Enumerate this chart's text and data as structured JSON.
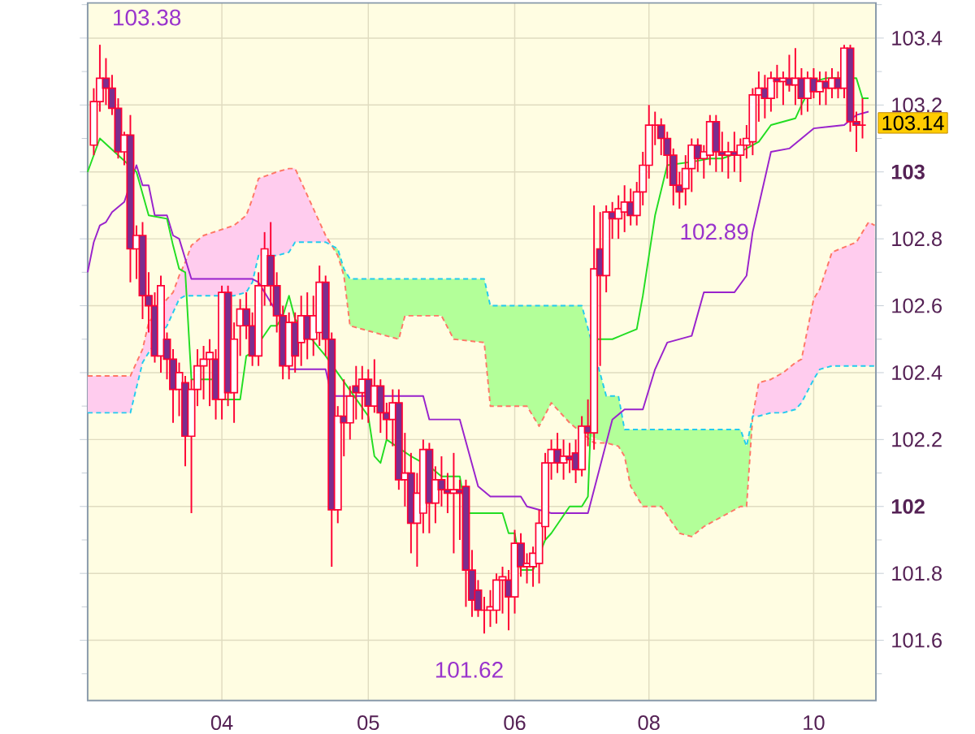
{
  "chart_data": {
    "type": "candlestick",
    "categories": [
      null,
      null,
      null,
      null,
      null,
      null,
      null,
      null,
      null,
      null,
      null,
      null,
      null,
      null,
      null,
      null,
      null,
      null,
      null,
      null,
      null,
      null,
      "04",
      null,
      null,
      null,
      null,
      null,
      null,
      null,
      null,
      null,
      null,
      null,
      null,
      null,
      null,
      null,
      null,
      null,
      null,
      null,
      null,
      null,
      null,
      null,
      "05",
      null,
      null,
      null,
      null,
      null,
      null,
      null,
      null,
      null,
      null,
      null,
      null,
      null,
      null,
      null,
      null,
      null,
      null,
      null,
      null,
      null,
      null,
      null,
      "06",
      null,
      null,
      null,
      null,
      null,
      null,
      null,
      null,
      null,
      null,
      null,
      null,
      null,
      null,
      null,
      null,
      null,
      null,
      null,
      null,
      null,
      "08",
      null,
      null,
      null,
      null,
      null,
      null,
      null,
      null,
      null,
      null,
      null,
      null,
      null,
      null,
      null,
      null,
      null,
      null,
      null,
      null,
      null,
      null,
      null,
      null,
      null,
      null,
      "10",
      null,
      null,
      null,
      null,
      null,
      null,
      null,
      null,
      null,
      null
    ],
    "ohlc": [
      null,
      [
        103.08,
        103.25,
        103.05,
        103.21
      ],
      [
        103.21,
        103.38,
        103.18,
        103.28
      ],
      [
        103.28,
        103.34,
        103.2,
        103.25
      ],
      [
        103.25,
        103.29,
        103.17,
        103.19
      ],
      [
        103.19,
        103.22,
        103.04,
        103.06
      ],
      [
        103.06,
        103.12,
        103.02,
        103.11
      ],
      [
        103.11,
        103.17,
        102.67,
        102.77
      ],
      [
        102.77,
        102.84,
        102.68,
        102.81
      ],
      [
        102.81,
        102.85,
        102.56,
        102.63
      ],
      [
        102.63,
        102.7,
        102.52,
        102.6
      ],
      [
        102.6,
        102.64,
        102.43,
        102.45
      ],
      [
        102.45,
        102.69,
        102.4,
        102.66
      ],
      [
        102.5,
        102.52,
        102.38,
        102.44
      ],
      [
        102.44,
        102.47,
        102.25,
        102.35
      ],
      [
        102.35,
        102.43,
        102.27,
        102.4
      ],
      [
        102.37,
        102.39,
        102.12,
        102.21
      ],
      [
        102.21,
        102.38,
        101.98,
        102.35
      ],
      [
        102.35,
        102.47,
        102.3,
        102.42
      ],
      [
        102.42,
        102.48,
        102.32,
        102.44
      ],
      [
        102.44,
        102.5,
        102.3,
        102.46
      ],
      [
        102.44,
        102.47,
        102.26,
        102.32
      ],
      [
        102.32,
        102.66,
        102.26,
        102.64
      ],
      [
        102.64,
        102.66,
        102.3,
        102.34
      ],
      [
        102.34,
        102.55,
        102.25,
        102.5
      ],
      [
        102.54,
        102.62,
        102.45,
        102.59
      ],
      [
        102.59,
        102.64,
        102.5,
        102.54
      ],
      [
        102.54,
        102.58,
        102.42,
        102.45
      ],
      [
        102.45,
        102.7,
        102.42,
        102.66
      ],
      [
        102.66,
        102.82,
        102.6,
        102.77
      ],
      [
        102.75,
        102.85,
        102.6,
        102.66
      ],
      [
        102.66,
        102.7,
        102.52,
        102.57
      ],
      [
        102.57,
        102.6,
        102.38,
        102.42
      ],
      [
        102.42,
        102.58,
        102.38,
        102.55
      ],
      [
        102.55,
        102.58,
        102.4,
        102.45
      ],
      [
        102.49,
        102.63,
        102.42,
        102.57
      ],
      [
        102.57,
        102.64,
        102.44,
        102.5
      ],
      [
        102.5,
        102.63,
        102.45,
        102.57
      ],
      [
        102.52,
        102.72,
        102.48,
        102.67
      ],
      [
        102.67,
        102.69,
        102.45,
        102.5
      ],
      [
        102.5,
        102.52,
        101.82,
        101.99
      ],
      [
        101.99,
        102.3,
        101.95,
        102.27
      ],
      [
        102.27,
        102.38,
        102.15,
        102.25
      ],
      [
        102.25,
        102.36,
        102.2,
        102.33
      ],
      [
        102.36,
        102.42,
        102.26,
        102.34
      ],
      [
        102.34,
        102.42,
        102.26,
        102.38
      ],
      [
        102.38,
        102.41,
        102.25,
        102.3
      ],
      [
        102.3,
        102.44,
        102.28,
        102.36
      ],
      [
        102.36,
        102.38,
        102.22,
        102.28
      ],
      [
        102.28,
        102.31,
        102.2,
        102.26
      ],
      [
        102.26,
        102.35,
        102.18,
        102.31
      ],
      [
        102.31,
        102.35,
        102.05,
        102.08
      ],
      [
        102.08,
        102.22,
        102.0,
        102.1
      ],
      [
        102.1,
        102.16,
        101.86,
        101.95
      ],
      [
        101.95,
        102.1,
        101.82,
        102.04
      ],
      [
        101.98,
        102.2,
        101.92,
        102.17
      ],
      [
        102.17,
        102.19,
        101.92,
        102.01
      ],
      [
        102.01,
        102.12,
        101.95,
        102.08
      ],
      [
        102.08,
        102.15,
        102.0,
        102.05
      ],
      [
        102.05,
        102.1,
        101.98,
        102.04
      ],
      [
        102.04,
        102.16,
        101.86,
        102.05
      ],
      [
        102.05,
        102.08,
        101.9,
        102.04
      ],
      [
        102.06,
        102.08,
        101.7,
        101.81
      ],
      [
        101.81,
        101.87,
        101.67,
        101.72
      ],
      [
        101.75,
        101.78,
        101.67,
        101.69
      ],
      [
        101.69,
        101.73,
        101.62,
        101.69
      ],
      [
        101.69,
        101.75,
        101.64,
        101.7
      ],
      [
        101.69,
        101.8,
        101.65,
        101.78
      ],
      [
        101.78,
        101.82,
        101.68,
        101.79
      ],
      [
        101.78,
        101.81,
        101.63,
        101.73
      ],
      [
        101.73,
        101.93,
        101.68,
        101.89
      ],
      [
        101.89,
        101.92,
        101.79,
        101.82
      ],
      [
        101.82,
        101.86,
        101.77,
        101.83
      ],
      [
        101.82,
        101.88,
        101.76,
        101.86
      ],
      [
        101.83,
        101.99,
        101.77,
        101.95
      ],
      [
        101.94,
        102.16,
        101.9,
        102.13
      ],
      [
        102.13,
        102.2,
        102.08,
        102.17
      ],
      [
        102.17,
        102.22,
        102.1,
        102.13
      ],
      [
        102.13,
        102.2,
        102.08,
        102.15
      ],
      [
        102.15,
        102.19,
        102.1,
        102.14
      ],
      [
        102.16,
        102.2,
        102.07,
        102.11
      ],
      [
        102.11,
        102.27,
        102.09,
        102.24
      ],
      [
        102.24,
        102.32,
        102.18,
        102.22
      ],
      [
        102.22,
        102.9,
        102.17,
        102.71
      ],
      [
        102.77,
        102.88,
        102.42,
        102.69
      ],
      [
        102.69,
        102.9,
        102.64,
        102.88
      ],
      [
        102.88,
        102.91,
        102.8,
        102.86
      ],
      [
        102.86,
        102.93,
        102.8,
        102.89
      ],
      [
        102.88,
        102.96,
        102.82,
        102.91
      ],
      [
        102.91,
        102.95,
        102.84,
        102.87
      ],
      [
        102.87,
        102.97,
        102.84,
        102.94
      ],
      [
        102.94,
        103.06,
        102.9,
        103.02
      ],
      [
        103.02,
        103.2,
        102.98,
        103.14
      ],
      [
        103.14,
        103.18,
        103.08,
        103.14
      ],
      [
        103.14,
        103.16,
        103.05,
        103.1
      ],
      [
        103.1,
        103.12,
        102.98,
        103.05
      ],
      [
        103.05,
        103.07,
        102.9,
        102.96
      ],
      [
        102.96,
        103.0,
        102.89,
        102.94
      ],
      [
        102.95,
        103.05,
        102.9,
        103.01
      ],
      [
        103.01,
        103.1,
        102.94,
        103.08
      ],
      [
        103.08,
        103.1,
        103.0,
        103.04
      ],
      [
        103.04,
        103.08,
        102.98,
        103.06
      ],
      [
        103.05,
        103.17,
        103.02,
        103.15
      ],
      [
        103.15,
        103.17,
        103.0,
        103.06
      ],
      [
        103.06,
        103.12,
        103.0,
        103.05
      ],
      [
        103.05,
        103.09,
        102.98,
        103.06
      ],
      [
        103.06,
        103.12,
        103.0,
        103.05
      ],
      [
        103.05,
        103.1,
        102.97,
        103.08
      ],
      [
        103.08,
        103.14,
        103.04,
        103.1
      ],
      [
        103.09,
        103.25,
        103.05,
        103.23
      ],
      [
        103.23,
        103.3,
        103.15,
        103.25
      ],
      [
        103.25,
        103.29,
        103.16,
        103.22
      ],
      [
        103.22,
        103.3,
        103.18,
        103.28
      ],
      [
        103.28,
        103.32,
        103.22,
        103.27
      ],
      [
        103.27,
        103.3,
        103.2,
        103.28
      ],
      [
        103.28,
        103.35,
        103.24,
        103.26
      ],
      [
        103.26,
        103.37,
        103.2,
        103.28
      ],
      [
        103.28,
        103.31,
        103.17,
        103.22
      ],
      [
        103.22,
        103.3,
        103.18,
        103.28
      ],
      [
        103.28,
        103.31,
        103.22,
        103.24
      ],
      [
        103.24,
        103.3,
        103.2,
        103.27
      ],
      [
        103.27,
        103.3,
        103.2,
        103.25
      ],
      [
        103.25,
        103.31,
        103.22,
        103.28
      ],
      [
        103.28,
        103.3,
        103.22,
        103.25
      ],
      [
        103.25,
        103.38,
        103.22,
        103.37
      ],
      [
        103.37,
        103.38,
        103.12,
        103.15
      ],
      [
        103.15,
        103.18,
        103.06,
        103.14
      ],
      [
        103.14,
        103.22,
        103.1,
        103.14
      ],
      null,
      null
    ],
    "color": "#ff0033",
    "series": [
      {
        "type": "line",
        "color": "#ff7766",
        "line_style": "dashed",
        "values": [
          102.39,
          null,
          null,
          null,
          null,
          null,
          null,
          102.39,
          null,
          102.47,
          102.55,
          null,
          null,
          102.62,
          102.64,
          102.69,
          102.73,
          102.78,
          null,
          102.81,
          null,
          null,
          null,
          null,
          102.84,
          null,
          102.87,
          102.92,
          102.98,
          null,
          null,
          103.0,
          null,
          103.01,
          103.01,
          null,
          102.93,
          null,
          102.85,
          102.81,
          102.78,
          102.75,
          102.69,
          102.54,
          null,
          null,
          null,
          null,
          null,
          null,
          null,
          102.5,
          102.57,
          null,
          null,
          null,
          null,
          null,
          102.57,
          null,
          102.5,
          null,
          null,
          null,
          null,
          102.49,
          102.3,
          null,
          null,
          null,
          null,
          null,
          102.3,
          null,
          102.24,
          null,
          102.31,
          null,
          null,
          102.25,
          null,
          102.22,
          null,
          102.19,
          null,
          102.19,
          null,
          102.18,
          102.15,
          102.06,
          null,
          102.0,
          null,
          null,
          102.0,
          null,
          null,
          101.92,
          null,
          101.91,
          null,
          101.94,
          null,
          101.96,
          null,
          101.98,
          null,
          102.0,
          102.0,
          102.27,
          102.37,
          null,
          102.38,
          null,
          102.4,
          null,
          102.43,
          102.44,
          null,
          102.62,
          102.65,
          null,
          102.76,
          null,
          null,
          null,
          102.79,
          null,
          102.85,
          102.84
        ],
        "upper": [
          102.39,
          null,
          null,
          null,
          null,
          null,
          null,
          102.39,
          null,
          102.47,
          102.55,
          null,
          null,
          102.62,
          102.64,
          102.69,
          102.73,
          102.78,
          null,
          102.81,
          null,
          null,
          null,
          null,
          102.84,
          null,
          102.87,
          102.92,
          102.98,
          null,
          null,
          103.0,
          null,
          103.01,
          103.01,
          null,
          102.93,
          null,
          102.85,
          102.81,
          102.78,
          null,
          null,
          null,
          null,
          null,
          null,
          null,
          null,
          null,
          null,
          null,
          null,
          null,
          null,
          null,
          null,
          null,
          null,
          null,
          null,
          null,
          null,
          null,
          null,
          null,
          null,
          null,
          null,
          null,
          null,
          null,
          null,
          null,
          null,
          null,
          null,
          null,
          null,
          null,
          null,
          null,
          null,
          null,
          null,
          null,
          null,
          null,
          null,
          null,
          null,
          null,
          null,
          null,
          null,
          null,
          null,
          null,
          null,
          null,
          null,
          null,
          null,
          null,
          null,
          null,
          null,
          null,
          null,
          102.27,
          102.37,
          null,
          102.38,
          null,
          102.4,
          null,
          102.43,
          102.44,
          null,
          102.62,
          102.65,
          null,
          102.76,
          null,
          null,
          null,
          102.79,
          null,
          102.85,
          102.84
        ],
        "lower": [
          102.28,
          null,
          null,
          null,
          null,
          null,
          null,
          102.28,
          null,
          102.43,
          102.46,
          null,
          null,
          102.54,
          102.58,
          102.62,
          102.63,
          102.63,
          null,
          102.63,
          null,
          null,
          null,
          null,
          102.63,
          null,
          102.64,
          102.67,
          102.75,
          null,
          null,
          102.75,
          null,
          102.76,
          102.79,
          null,
          102.79,
          null,
          102.79,
          102.79,
          102.78,
          null,
          null,
          null,
          null,
          null,
          null,
          null,
          null,
          null,
          null,
          null,
          null,
          null,
          null,
          null,
          null,
          null,
          null,
          null,
          null,
          null,
          null,
          null,
          null,
          null,
          null,
          null,
          null,
          null,
          null,
          null,
          null,
          null,
          null,
          null,
          null,
          null,
          null,
          null,
          null,
          null,
          null,
          null,
          null,
          null,
          null,
          null,
          null,
          null,
          null,
          null,
          null,
          null,
          null,
          null,
          null,
          null,
          null,
          null,
          null,
          null,
          null,
          null,
          null,
          null,
          null,
          null,
          null,
          102.27,
          102.27,
          null,
          102.28,
          null,
          102.28,
          null,
          102.29,
          102.31,
          null,
          102.38,
          102.41,
          null,
          102.42,
          null,
          null,
          null,
          102.42,
          null,
          102.42,
          102.42
        ]
      },
      {
        "type": "line",
        "color": "#22ccee",
        "line_style": "dashed",
        "values": [
          102.28,
          null,
          null,
          null,
          null,
          null,
          null,
          102.28,
          null,
          102.43,
          102.46,
          null,
          null,
          102.54,
          102.58,
          102.62,
          102.63,
          102.63,
          null,
          102.63,
          null,
          null,
          null,
          null,
          102.63,
          null,
          102.64,
          102.67,
          102.75,
          null,
          null,
          102.75,
          null,
          102.76,
          102.79,
          null,
          102.79,
          null,
          102.79,
          102.79,
          102.78,
          102.77,
          102.71,
          102.68,
          null,
          null,
          null,
          null,
          null,
          null,
          null,
          102.68,
          102.68,
          null,
          null,
          null,
          null,
          null,
          102.68,
          null,
          102.68,
          null,
          null,
          null,
          null,
          102.68,
          102.6,
          null,
          null,
          null,
          null,
          null,
          102.6,
          null,
          102.6,
          null,
          102.6,
          null,
          null,
          102.6,
          null,
          102.6,
          null,
          null,
          null,
          102.33,
          null,
          102.33,
          102.23,
          102.23,
          null,
          102.23,
          null,
          null,
          102.23,
          null,
          null,
          102.23,
          null,
          102.23,
          null,
          102.23,
          null,
          102.23,
          null,
          102.23,
          null,
          102.23,
          102.18,
          102.27,
          102.27,
          null,
          102.28,
          null,
          102.28,
          null,
          102.29,
          102.31,
          null,
          102.38,
          102.41,
          null,
          102.42,
          null,
          null,
          null,
          102.42,
          null,
          102.42,
          102.42
        ],
        "upper": [
          null,
          null,
          null,
          null,
          null,
          null,
          null,
          null,
          null,
          null,
          null,
          null,
          null,
          null,
          null,
          null,
          null,
          null,
          null,
          null,
          null,
          null,
          null,
          null,
          null,
          null,
          null,
          null,
          null,
          null,
          null,
          null,
          null,
          null,
          null,
          null,
          null,
          null,
          null,
          null,
          102.78,
          102.77,
          102.71,
          102.68,
          null,
          null,
          null,
          null,
          null,
          null,
          null,
          102.68,
          102.68,
          null,
          null,
          null,
          null,
          null,
          102.68,
          null,
          102.68,
          null,
          null,
          null,
          null,
          102.68,
          102.6,
          null,
          null,
          null,
          null,
          null,
          102.6,
          null,
          102.6,
          null,
          102.6,
          null,
          null,
          102.6,
          null,
          102.6,
          null,
          null,
          null,
          102.33,
          null,
          102.33,
          102.23,
          102.23,
          null,
          102.23,
          null,
          null,
          102.23,
          null,
          null,
          102.23,
          null,
          102.23,
          null,
          102.23,
          null,
          102.23,
          null,
          102.23,
          null,
          102.23,
          102.18,
          102.27,
          null,
          null,
          null,
          null,
          null,
          null,
          null,
          null,
          null,
          null,
          null,
          null,
          null,
          null,
          null,
          null,
          null,
          null,
          null,
          null
        ],
        "lower": [
          null,
          null,
          null,
          null,
          null,
          null,
          null,
          null,
          null,
          null,
          null,
          null,
          null,
          null,
          null,
          null,
          null,
          null,
          null,
          null,
          null,
          null,
          null,
          null,
          null,
          null,
          null,
          null,
          null,
          null,
          null,
          null,
          null,
          null,
          null,
          null,
          null,
          null,
          null,
          null,
          102.78,
          102.75,
          102.69,
          102.54,
          null,
          null,
          null,
          null,
          null,
          null,
          null,
          102.5,
          102.57,
          null,
          null,
          null,
          null,
          null,
          102.57,
          null,
          102.5,
          null,
          null,
          null,
          null,
          102.49,
          102.3,
          null,
          null,
          null,
          null,
          null,
          102.3,
          null,
          102.24,
          null,
          102.31,
          null,
          null,
          102.25,
          null,
          102.22,
          null,
          null,
          null,
          102.19,
          null,
          102.18,
          102.15,
          102.06,
          null,
          102.0,
          null,
          null,
          102.0,
          null,
          null,
          101.92,
          null,
          101.91,
          null,
          101.94,
          null,
          101.96,
          null,
          101.98,
          null,
          102.0,
          102.0,
          102.27,
          null,
          null,
          null,
          null,
          null,
          null,
          null,
          null,
          null,
          null,
          null,
          null,
          null,
          null,
          null,
          null,
          null,
          null,
          null,
          null
        ]
      },
      {
        "type": "line",
        "color": "#9922cc",
        "values": [
          102.7,
          102.79,
          102.84,
          102.85,
          102.88,
          null,
          102.91,
          null,
          103.02,
          102.96,
          102.96,
          102.87,
          null,
          102.87,
          102.81,
          102.8,
          null,
          102.68,
          null,
          null,
          null,
          null,
          null,
          null,
          null,
          null,
          null,
          102.68,
          102.67,
          null,
          102.61,
          102.58,
          102.57,
          102.41,
          null,
          null,
          null,
          null,
          null,
          102.41,
          102.33,
          null,
          null,
          null,
          null,
          null,
          null,
          null,
          null,
          null,
          null,
          null,
          null,
          null,
          null,
          102.33,
          102.26,
          null,
          null,
          null,
          null,
          102.26,
          null,
          null,
          102.06,
          null,
          102.03,
          null,
          null,
          null,
          null,
          102.03,
          102.0,
          null,
          null,
          null,
          101.98,
          null,
          null,
          null,
          null,
          null,
          101.98,
          null,
          null,
          null,
          102.26,
          null,
          102.29,
          null,
          null,
          102.29,
          null,
          102.41,
          null,
          102.49,
          null,
          null,
          null,
          102.51,
          null,
          102.64,
          null,
          null,
          null,
          null,
          102.64,
          null,
          102.69,
          102.82,
          null,
          null,
          103.06,
          null,
          null,
          103.07,
          null,
          null,
          null,
          103.13,
          null,
          null,
          null,
          null,
          103.14,
          null,
          103.17,
          null,
          103.18,
          null
        ]
      },
      {
        "type": "line",
        "color": "#22dd22",
        "values": [
          103.0,
          null,
          103.1,
          null,
          null,
          null,
          null,
          null,
          103.0,
          null,
          102.87,
          null,
          null,
          102.86,
          102.78,
          102.71,
          102.7,
          102.38,
          null,
          null,
          null,
          102.38,
          102.32,
          null,
          null,
          102.32,
          102.45,
          102.46,
          null,
          null,
          102.54,
          102.54,
          102.57,
          102.63,
          102.56,
          null,
          null,
          null,
          null,
          102.45,
          null,
          null,
          null,
          null,
          null,
          null,
          102.27,
          102.15,
          102.13,
          102.2,
          null,
          null,
          null,
          102.15,
          null,
          null,
          102.12,
          null,
          102.09,
          null,
          null,
          102.09,
          101.98,
          null,
          null,
          null,
          null,
          null,
          101.98,
          101.92,
          101.92,
          101.81,
          null,
          101.81,
          null,
          101.9,
          101.92,
          null,
          null,
          102.0,
          null,
          102.0,
          102.03,
          102.5,
          null,
          null,
          102.5,
          null,
          null,
          null,
          102.53,
          102.63,
          null,
          102.87,
          null,
          103.02,
          null,
          null,
          null,
          103.03,
          null,
          null,
          103.04,
          null,
          103.04,
          null,
          null,
          103.06,
          null,
          null,
          103.09,
          null,
          103.14,
          null,
          null,
          null,
          103.16,
          103.2,
          null,
          103.27,
          null,
          103.28,
          null,
          null,
          null,
          null,
          103.28,
          103.22,
          103.22,
          null
        ]
      }
    ],
    "ylim": [
      101.42,
      103.505
    ],
    "yticks": [
      {
        "value": 101.5,
        "label": null
      },
      101.6,
      {
        "value": 101.7,
        "label": null
      },
      101.8,
      {
        "value": 101.9,
        "label": null
      },
      102,
      {
        "value": 102.1,
        "label": null
      },
      102.2,
      {
        "value": 102.3,
        "label": null
      },
      102.4,
      {
        "value": 102.5,
        "label": null
      },
      102.6,
      {
        "value": 102.7,
        "label": null
      },
      102.8,
      {
        "value": 102.9,
        "label": null
      },
      103,
      {
        "value": 103.1,
        "label": null
      },
      103.2,
      {
        "value": 103.3,
        "label": null
      },
      103.4,
      {
        "value": 103.5,
        "label": null
      }
    ],
    "grid": true,
    "annotations": [
      "103.38",
      "101.62",
      "102.89",
      "103.14"
    ]
  }
}
